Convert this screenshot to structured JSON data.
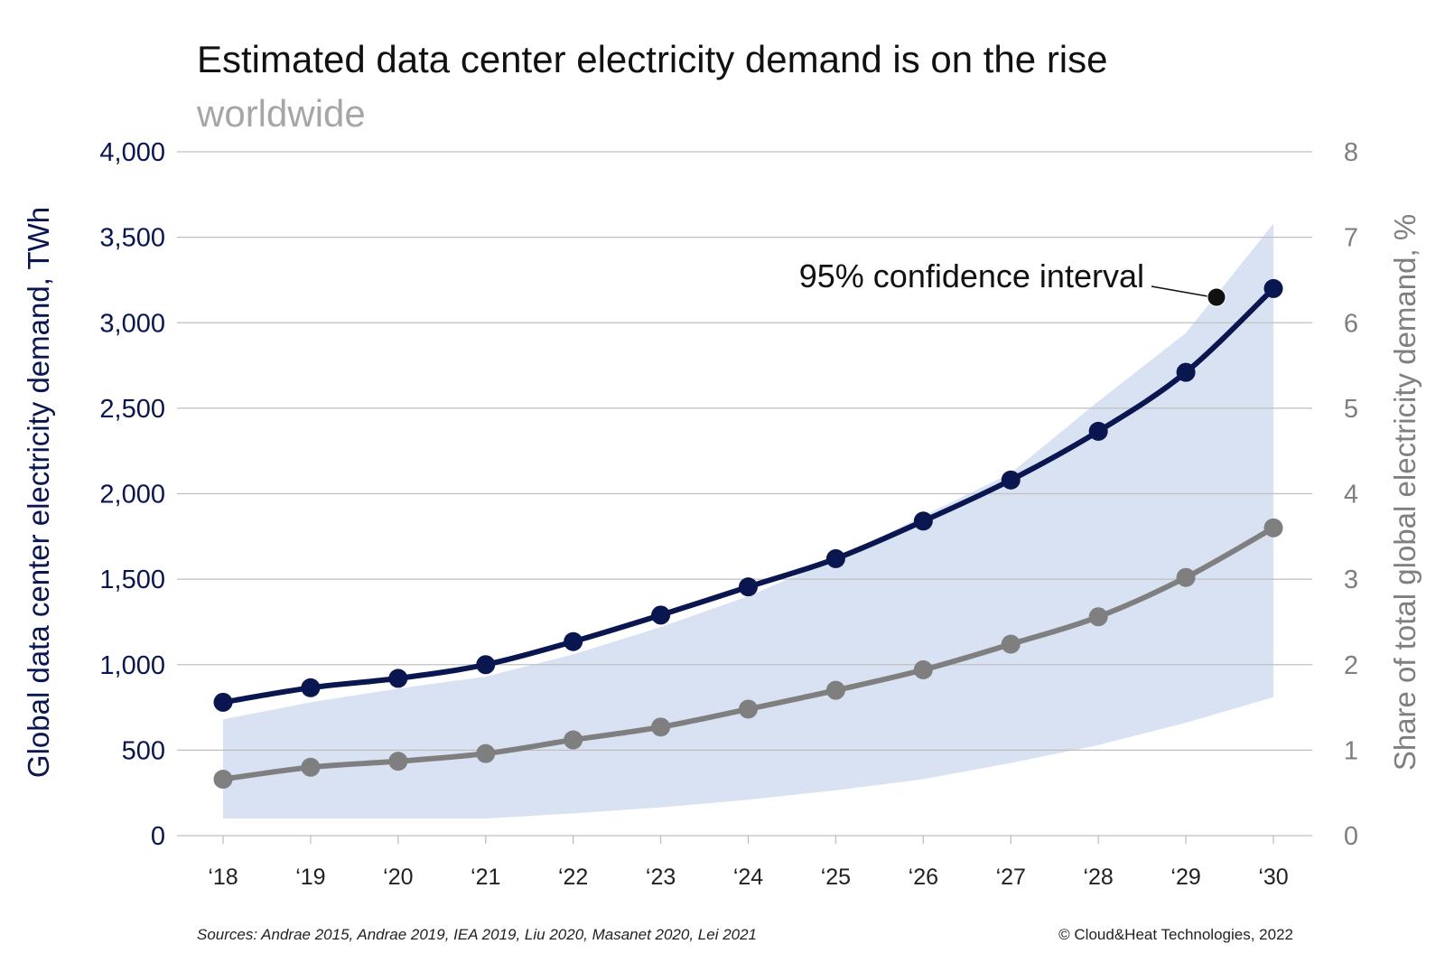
{
  "colors": {
    "primary_series": "#0a1650",
    "secondary_series": "#7f7f7f",
    "confidence_band": "#d9e2f3",
    "gridline": "#bfbfbf",
    "subtitle": "#a6a6a6"
  },
  "chart_data": {
    "type": "line",
    "title": "Estimated data center electricity demand is on the rise",
    "subtitle": "worldwide",
    "ylabel": "Global data center electricity demand, TWh",
    "ylabel_right": "Share of total global electricity demand, %",
    "ylim": [
      0,
      4000
    ],
    "ylim_right": [
      0,
      8
    ],
    "yticks": [
      "0",
      "500",
      "1,000",
      "1,500",
      "2,000",
      "2,500",
      "3,000",
      "3,500",
      "4,000"
    ],
    "yticks_right": [
      "0",
      "1",
      "2",
      "3",
      "4",
      "5",
      "6",
      "7",
      "8"
    ],
    "categories": [
      "‘18",
      "‘19",
      "‘20",
      "‘21",
      "‘22",
      "‘23",
      "‘24",
      "‘25",
      "‘26",
      "‘27",
      "‘28",
      "‘29",
      "‘30"
    ],
    "grid": true,
    "series": [
      {
        "axis": "left",
        "values": [
          780,
          865,
          920,
          1000,
          1135,
          1290,
          1455,
          1620,
          1840,
          2080,
          2365,
          2710,
          3200
        ]
      },
      {
        "axis": "right",
        "values": [
          0.66,
          0.8,
          0.87,
          0.96,
          1.12,
          1.27,
          1.48,
          1.7,
          1.94,
          2.24,
          2.56,
          3.02,
          3.6
        ]
      }
    ],
    "confidence_interval": {
      "axis": "left",
      "lower": [
        100,
        100,
        100,
        100,
        130,
        165,
        210,
        265,
        330,
        425,
        530,
        660,
        810
      ],
      "upper": [
        680,
        780,
        860,
        930,
        1060,
        1220,
        1400,
        1620,
        1870,
        2120,
        2540,
        2940,
        3580
      ]
    },
    "annotations": [
      {
        "text": "95% confidence interval"
      }
    ]
  },
  "footer": {
    "sources": "Sources: Andrae 2015, Andrae 2019, IEA 2019, Liu 2020, Masanet 2020, Lei 2021",
    "copyright": "© Cloud&Heat Technologies, 2022"
  }
}
